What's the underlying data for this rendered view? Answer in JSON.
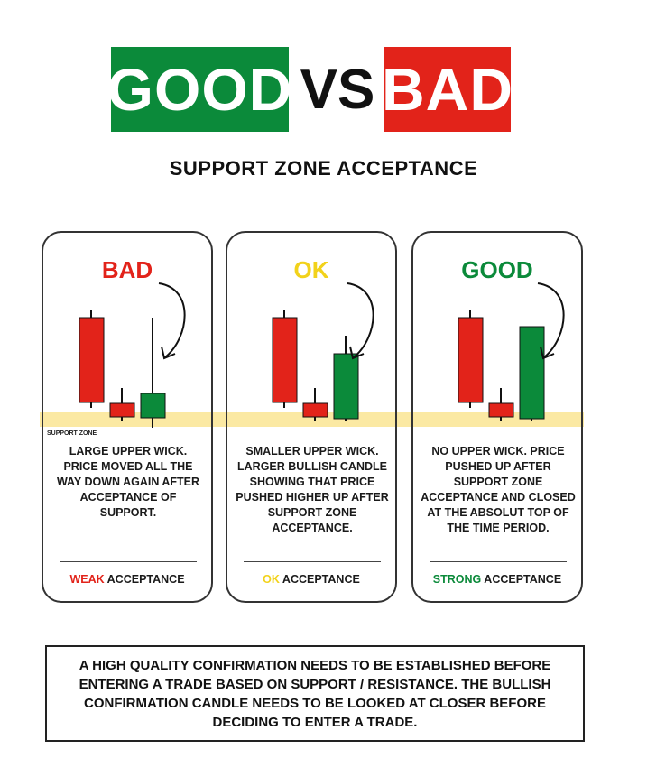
{
  "header": {
    "good": "GOOD",
    "vs": "VS",
    "bad": "BAD"
  },
  "subtitle": "SUPPORT ZONE ACCEPTANCE",
  "colors": {
    "green": "#0b8a3a",
    "red": "#e2231a",
    "yellow": "#f2d21b",
    "zone": "#fbe9a3"
  },
  "cards": [
    {
      "title": "BAD",
      "title_color": "#e2231a",
      "zone_label": "SUPPORT ZONE",
      "description": "LARGE UPPER WICK. PRICE MOVED ALL THE WAY DOWN AGAIN AFTER ACCEPTANCE OF SUPPORT.",
      "footer_word": "WEAK",
      "footer_rest": " ACCEPTANCE"
    },
    {
      "title": "OK",
      "title_color": "#f2d21b",
      "description": "SMALLER UPPER WICK. LARGER BULLISH CANDLE SHOWING THAT PRICE PUSHED HIGHER UP AFTER SUPPORT ZONE ACCEPTANCE.",
      "footer_word": "OK",
      "footer_rest": " ACCEPTANCE"
    },
    {
      "title": "GOOD",
      "title_color": "#0b8a3a",
      "description": "NO UPPER WICK. PRICE PUSHED UP AFTER SUPPORT ZONE ACCEPTANCE AND CLOSED AT THE ABSOLUT TOP OF THE TIME PERIOD.",
      "footer_word": "STRONG",
      "footer_rest": " ACCEPTANCE"
    }
  ],
  "note": "A HIGH QUALITY CONFIRMATION NEEDS TO BE ESTABLISHED BEFORE ENTERING A TRADE BASED ON SUPPORT / RESISTANCE. THE BULLISH CONFIRMATION CANDLE NEEDS TO BE LOOKED AT CLOSER BEFORE DECIDING TO ENTER A TRADE."
}
